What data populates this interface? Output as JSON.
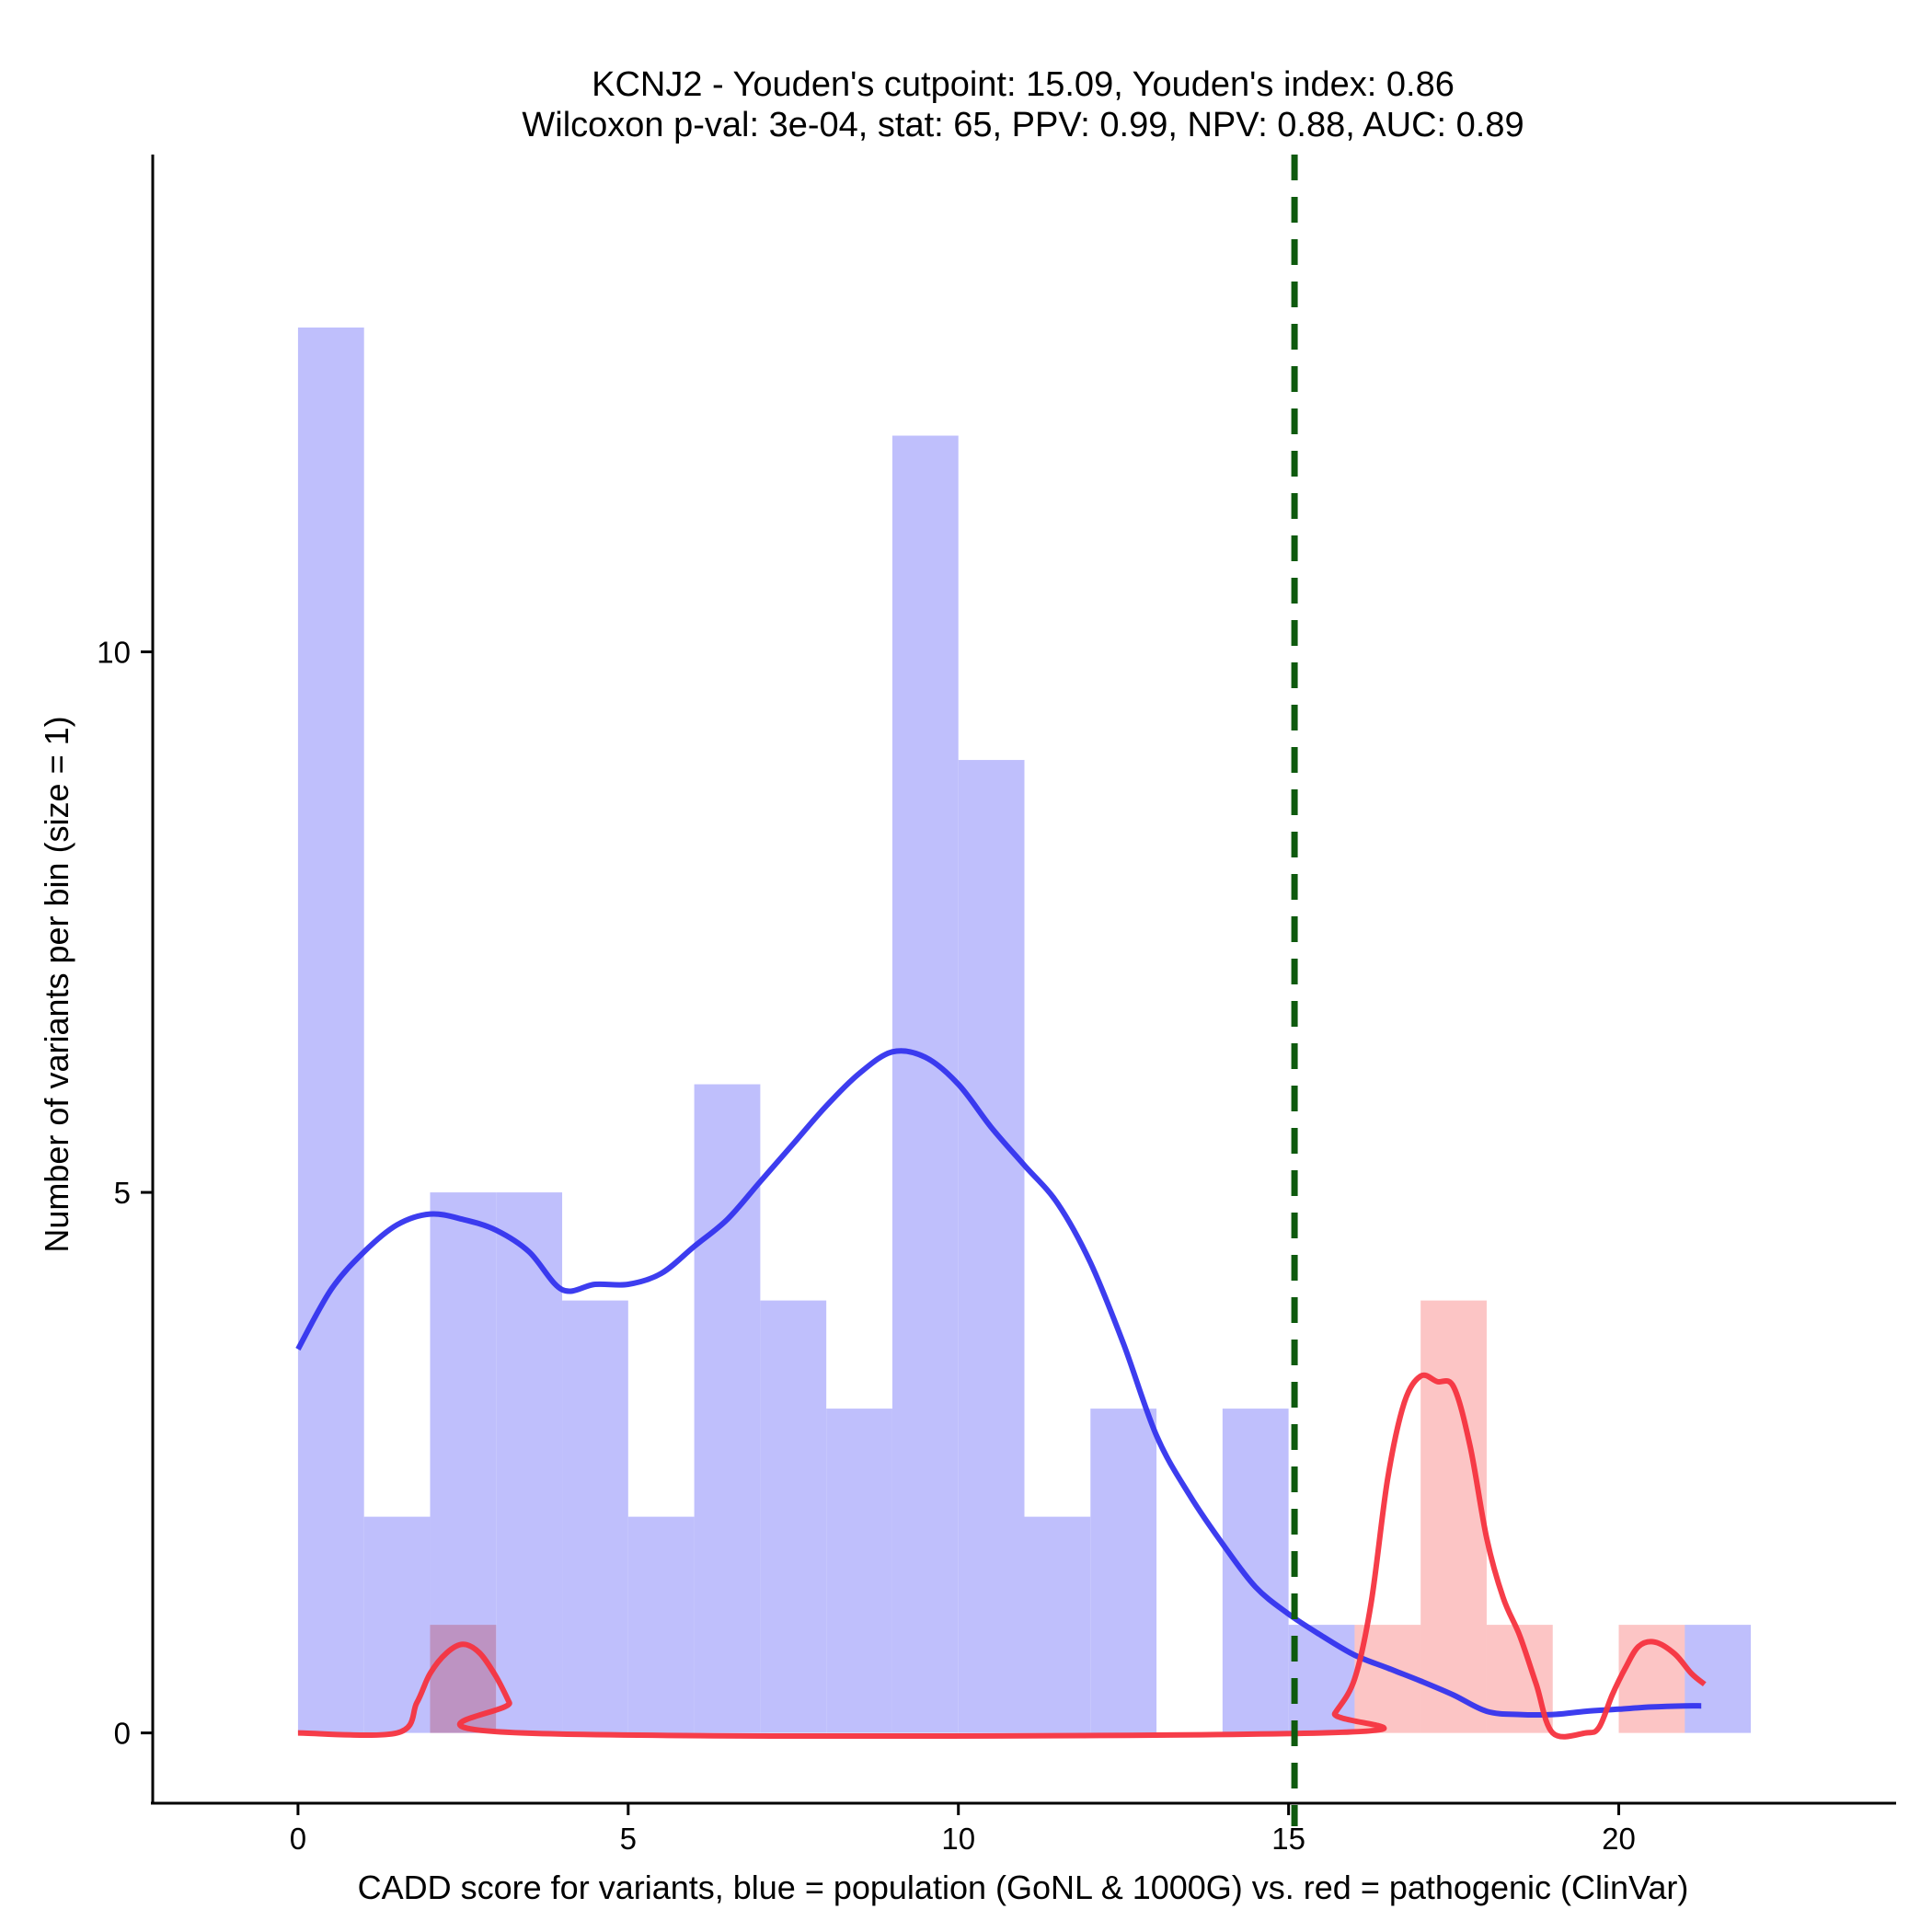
{
  "chart_data": {
    "type": "histogram-density",
    "title_line1": "KCNJ2 - Youden's cutpoint: 15.09, Youden's index: 0.86",
    "title_line2": "Wilcoxon p-val: 3e-04, stat: 65, PPV: 0.99, NPV: 0.88, AUC: 0.89",
    "xlabel": "CADD score for variants, blue = population (GoNL & 1000G) vs. red = pathogenic (ClinVar)",
    "ylabel": "Number of variants per bin (size = 1)",
    "xlim": [
      -2.2,
      24.2
    ],
    "ylim": [
      -0.65,
      14.6
    ],
    "x_ticks": [
      0,
      5,
      10,
      15,
      20
    ],
    "x_tick_labels": [
      "0",
      "5",
      "10",
      "15",
      "20"
    ],
    "y_ticks": [
      0,
      5,
      10
    ],
    "y_tick_labels": [
      "0",
      "5",
      "10"
    ],
    "bin_size": 1,
    "colors": {
      "population_bar": "#bfbffc",
      "pathogenic_bar": "#fcbfbf",
      "population_line": "#3333ee",
      "pathogenic_line": "#f5333f",
      "cutpoint_line": "#0e5a0e"
    },
    "cutpoint": 15.09,
    "population_bins": [
      {
        "start": 0,
        "count": 13
      },
      {
        "start": 1,
        "count": 2
      },
      {
        "start": 2,
        "count": 5
      },
      {
        "start": 3,
        "count": 5
      },
      {
        "start": 4,
        "count": 4
      },
      {
        "start": 5,
        "count": 2
      },
      {
        "start": 6,
        "count": 6
      },
      {
        "start": 7,
        "count": 4
      },
      {
        "start": 8,
        "count": 3
      },
      {
        "start": 9,
        "count": 12
      },
      {
        "start": 10,
        "count": 9
      },
      {
        "start": 11,
        "count": 2
      },
      {
        "start": 12,
        "count": 3
      },
      {
        "start": 14,
        "count": 3
      },
      {
        "start": 15,
        "count": 1
      },
      {
        "start": 21,
        "count": 1
      }
    ],
    "pathogenic_bins": [
      {
        "start": 2,
        "count": 1
      },
      {
        "start": 16,
        "count": 1
      },
      {
        "start": 17,
        "count": 4
      },
      {
        "start": 18,
        "count": 1
      },
      {
        "start": 20,
        "count": 1
      }
    ],
    "population_density": {
      "x": [
        0,
        0.5,
        1.0,
        1.5,
        2.0,
        2.5,
        3.0,
        3.5,
        4.0,
        4.5,
        5.0,
        5.5,
        6.0,
        6.5,
        7.0,
        7.5,
        8.0,
        8.5,
        9.0,
        9.5,
        10.0,
        10.5,
        11.0,
        11.5,
        12.0,
        12.5,
        13.0,
        13.5,
        14.0,
        14.5,
        15.0,
        15.5,
        16.0,
        16.5,
        17.0,
        17.5,
        18.0,
        18.5,
        19.0,
        19.5,
        20.0,
        20.5,
        21.0,
        21.25
      ],
      "y": [
        3.55,
        4.1,
        4.45,
        4.7,
        4.8,
        4.75,
        4.65,
        4.45,
        4.1,
        4.15,
        4.15,
        4.25,
        4.5,
        4.75,
        5.1,
        5.45,
        5.8,
        6.1,
        6.3,
        6.25,
        6.0,
        5.6,
        5.25,
        4.9,
        4.35,
        3.6,
        2.75,
        2.2,
        1.75,
        1.35,
        1.1,
        0.9,
        0.72,
        0.6,
        0.48,
        0.35,
        0.2,
        0.17,
        0.17,
        0.2,
        0.22,
        0.24,
        0.25,
        0.25
      ]
    },
    "pathogenic_density": {
      "x": [
        0,
        1.5,
        1.8,
        2.0,
        2.25,
        2.5,
        2.75,
        3.0,
        3.2,
        3.4,
        15.5,
        15.7,
        16.0,
        16.25,
        16.5,
        16.75,
        17.0,
        17.25,
        17.5,
        17.75,
        18.0,
        18.25,
        18.5,
        18.75,
        19.0,
        19.5,
        19.7,
        19.9,
        20.1,
        20.3,
        20.55,
        20.85,
        21.1,
        21.3
      ],
      "y": [
        0,
        0,
        0.28,
        0.55,
        0.74,
        0.82,
        0.74,
        0.52,
        0.28,
        0,
        0,
        0.18,
        0.5,
        1.2,
        2.35,
        3.05,
        3.3,
        3.25,
        3.2,
        2.65,
        1.8,
        1.25,
        0.9,
        0.45,
        0,
        0,
        0.05,
        0.35,
        0.6,
        0.8,
        0.84,
        0.73,
        0.55,
        0.45
      ]
    }
  }
}
